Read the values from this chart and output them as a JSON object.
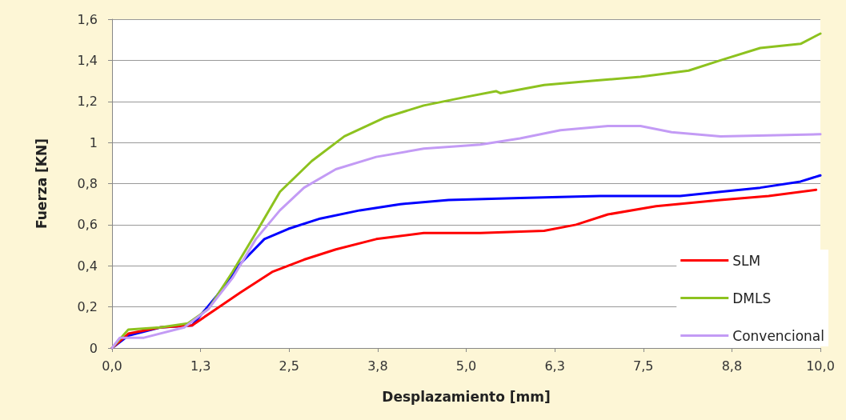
{
  "chart_data": {
    "type": "line",
    "xlabel": "Desplazamiento [mm]",
    "ylabel": "Fuerza [KN]",
    "xlim": [
      0,
      10
    ],
    "xticks": [
      {
        "value": 0,
        "label": "0,0"
      },
      {
        "value": 1.25,
        "label": "1,3"
      },
      {
        "value": 2.5,
        "label": "2,5"
      },
      {
        "value": 3.75,
        "label": "3,8"
      },
      {
        "value": 5,
        "label": "5,0"
      },
      {
        "value": 6.25,
        "label": "6,3"
      },
      {
        "value": 7.5,
        "label": "7,5"
      },
      {
        "value": 8.75,
        "label": "8,8"
      },
      {
        "value": 10,
        "label": "10,0"
      }
    ],
    "ylim": [
      0,
      1.6
    ],
    "yticks": [
      0,
      {
        "value": 0.2,
        "label": "0,2"
      },
      {
        "value": 0.4,
        "label": "0,4"
      },
      {
        "value": 0.6,
        "label": "0,6"
      },
      {
        "value": 0.8,
        "label": "0,8"
      },
      1,
      {
        "value": 1.2,
        "label": "1,2"
      },
      {
        "value": 1.4,
        "label": "1,4"
      },
      {
        "value": 1.6,
        "label": "1,6"
      }
    ],
    "grid": "y",
    "legend": "bottom right",
    "marker": "none",
    "line_style": "solid",
    "series": [
      {
        "color": "#0000ff",
        "x": [
          0,
          0.23,
          0.68,
          1.13,
          1.47,
          1.81,
          2.15,
          2.49,
          2.94,
          3.5,
          4.07,
          4.75,
          5.76,
          6.89,
          8.02,
          8.59,
          9.15,
          9.72,
          10
        ],
        "values": [
          0,
          0.06,
          0.1,
          0.11,
          0.25,
          0.41,
          0.53,
          0.58,
          0.63,
          0.67,
          0.7,
          0.72,
          0.73,
          0.74,
          0.74,
          0.76,
          0.78,
          0.81,
          0.84
        ]
      },
      {
        "name": "SLM",
        "color": "#ff0000",
        "x": [
          0,
          0.23,
          0.68,
          1.13,
          1.47,
          1.81,
          2.26,
          2.71,
          3.16,
          3.73,
          4.4,
          5.2,
          6.1,
          6.55,
          7.0,
          7.68,
          8.59,
          9.27,
          9.94
        ],
        "values": [
          0,
          0.07,
          0.1,
          0.11,
          0.19,
          0.27,
          0.37,
          0.43,
          0.48,
          0.53,
          0.56,
          0.56,
          0.57,
          0.6,
          0.65,
          0.69,
          0.72,
          0.74,
          0.77
        ]
      },
      {
        "name": "DMLS",
        "color": "#8dc21f",
        "x": [
          0,
          0.23,
          0.68,
          1.07,
          1.36,
          1.7,
          2.03,
          2.37,
          2.82,
          3.28,
          3.84,
          4.4,
          4.97,
          5.42,
          5.48,
          6.1,
          6.78,
          7.46,
          8.14,
          8.59,
          9.15,
          9.72,
          10
        ],
        "values": [
          0,
          0.09,
          0.1,
          0.12,
          0.19,
          0.37,
          0.56,
          0.76,
          0.91,
          1.03,
          1.12,
          1.18,
          1.22,
          1.25,
          1.24,
          1.28,
          1.3,
          1.32,
          1.35,
          1.4,
          1.46,
          1.48,
          1.53
        ]
      },
      {
        "name": "Convencional",
        "color": "#c39bf5",
        "x": [
          0,
          0.11,
          0.45,
          1.02,
          1.36,
          1.7,
          2.03,
          2.37,
          2.71,
          3.16,
          3.73,
          4.4,
          5.2,
          5.76,
          6.33,
          7.0,
          7.46,
          7.9,
          8.59,
          10
        ],
        "values": [
          0,
          0.05,
          0.05,
          0.1,
          0.19,
          0.34,
          0.53,
          0.67,
          0.78,
          0.87,
          0.93,
          0.97,
          0.99,
          1.02,
          1.06,
          1.08,
          1.08,
          1.05,
          1.03,
          1.04
        ]
      }
    ]
  }
}
